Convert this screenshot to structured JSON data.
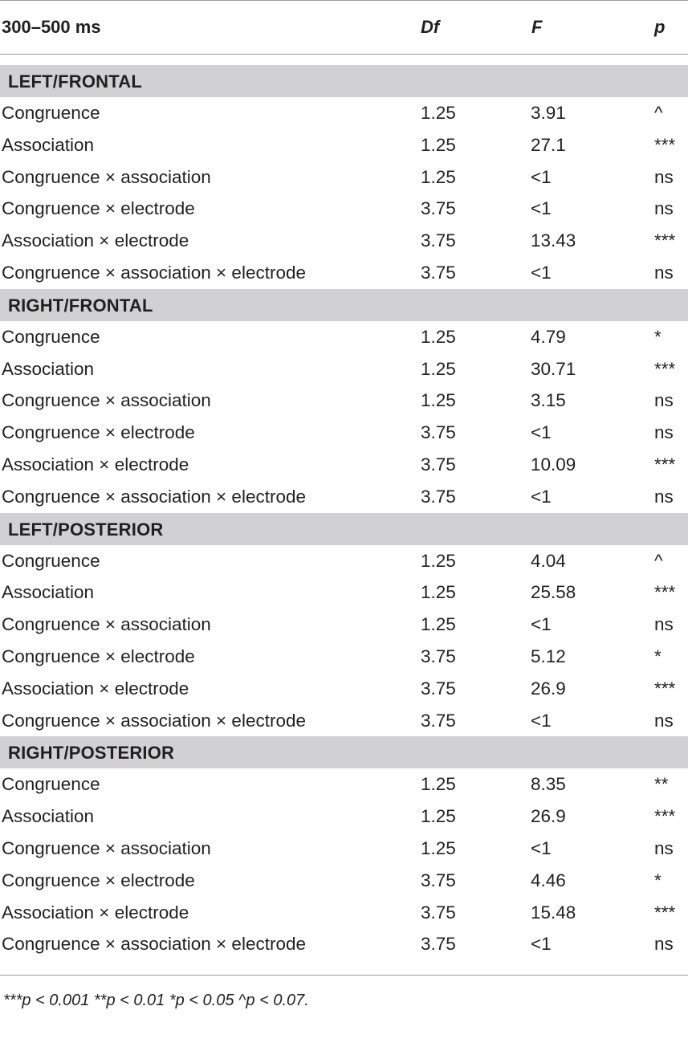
{
  "header": {
    "label": "300–500 ms",
    "df": "Df",
    "f": "F",
    "p": "p"
  },
  "groups": [
    {
      "title": "LEFT/FRONTAL",
      "rows": [
        {
          "label": "Congruence",
          "df": "1.25",
          "f": "3.91",
          "p": "^"
        },
        {
          "label": "Association",
          "df": "1.25",
          "f": "27.1",
          "p": "***"
        },
        {
          "label": "Congruence × association",
          "df": "1.25",
          "f": "<1",
          "p": "ns"
        },
        {
          "label": "Congruence × electrode",
          "df": "3.75",
          "f": "<1",
          "p": "ns"
        },
        {
          "label": "Association × electrode",
          "df": "3.75",
          "f": "13.43",
          "p": "***"
        },
        {
          "label": "Congruence × association × electrode",
          "df": "3.75",
          "f": "<1",
          "p": "ns"
        }
      ]
    },
    {
      "title": "RIGHT/FRONTAL",
      "rows": [
        {
          "label": "Congruence",
          "df": "1.25",
          "f": "4.79",
          "p": "*"
        },
        {
          "label": "Association",
          "df": "1.25",
          "f": "30.71",
          "p": "***"
        },
        {
          "label": "Congruence × association",
          "df": "1.25",
          "f": "3.15",
          "p": "ns"
        },
        {
          "label": "Congruence × electrode",
          "df": "3.75",
          "f": "<1",
          "p": "ns"
        },
        {
          "label": "Association × electrode",
          "df": "3.75",
          "f": "10.09",
          "p": "***"
        },
        {
          "label": "Congruence × association × electrode",
          "df": "3.75",
          "f": "<1",
          "p": "ns"
        }
      ]
    },
    {
      "title": "LEFT/POSTERIOR",
      "rows": [
        {
          "label": "Congruence",
          "df": "1.25",
          "f": "4.04",
          "p": "^"
        },
        {
          "label": "Association",
          "df": "1.25",
          "f": "25.58",
          "p": "***"
        },
        {
          "label": "Congruence × association",
          "df": "1.25",
          "f": "<1",
          "p": "ns"
        },
        {
          "label": "Congruence × electrode",
          "df": "3.75",
          "f": "5.12",
          "p": "*"
        },
        {
          "label": "Association × electrode",
          "df": "3.75",
          "f": "26.9",
          "p": "***"
        },
        {
          "label": "Congruence × association × electrode",
          "df": "3.75",
          "f": "<1",
          "p": "ns"
        }
      ]
    },
    {
      "title": "RIGHT/POSTERIOR",
      "rows": [
        {
          "label": "Congruence",
          "df": "1.25",
          "f": "8.35",
          "p": "**"
        },
        {
          "label": "Association",
          "df": "1.25",
          "f": "26.9",
          "p": "***"
        },
        {
          "label": "Congruence × association",
          "df": "1.25",
          "f": "<1",
          "p": "ns"
        },
        {
          "label": "Congruence × electrode",
          "df": "3.75",
          "f": "4.46",
          "p": "*"
        },
        {
          "label": "Association × electrode",
          "df": "3.75",
          "f": "15.48",
          "p": "***"
        },
        {
          "label": "Congruence × association × electrode",
          "df": "3.75",
          "f": "<1",
          "p": "ns"
        }
      ]
    }
  ],
  "footnote": "***p < 0.001  **p < 0.01  *p < 0.05  ^p < 0.07."
}
